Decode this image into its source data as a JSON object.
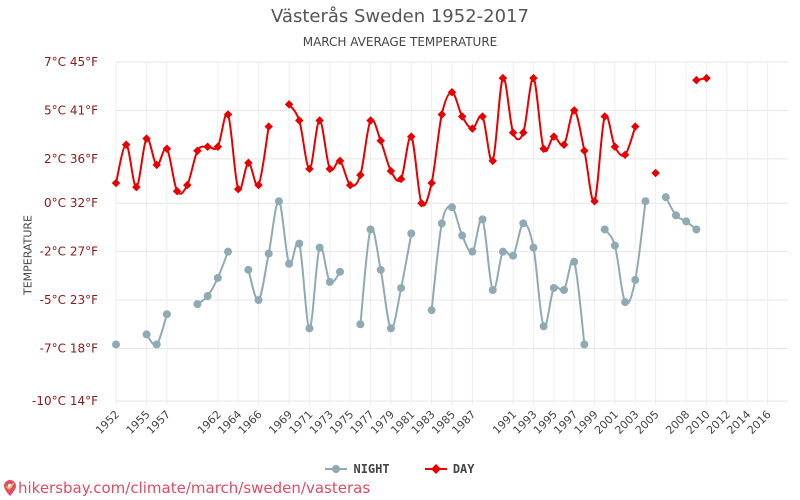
{
  "chart_data": {
    "type": "line",
    "title": "Västerås Sweden 1952-2017",
    "subtitle": "MARCH AVERAGE TEMPERATURE",
    "ylabel": "TEMPERATURE",
    "ylim": [
      -10,
      7
    ],
    "yticks": [
      {
        "v": 7,
        "label": "7°C 45°F"
      },
      {
        "v": 4.6,
        "label": "5°C 41°F"
      },
      {
        "v": 2.2,
        "label": "2°C 36°F"
      },
      {
        "v": 0,
        "label": "0°C 32°F"
      },
      {
        "v": -2.4,
        "label": "-2°C 27°F"
      },
      {
        "v": -4.8,
        "label": "-5°C 23°F"
      },
      {
        "v": -7.2,
        "label": "-7°C 18°F"
      },
      {
        "v": -9.8,
        "label": "-10°C 14°F"
      }
    ],
    "xlim": [
      1952,
      2018
    ],
    "xticks": [
      1952,
      1955,
      1957,
      1962,
      1964,
      1966,
      1969,
      1971,
      1973,
      1975,
      1977,
      1979,
      1981,
      1983,
      1985,
      1987,
      1991,
      1993,
      1995,
      1997,
      1999,
      2001,
      2003,
      2005,
      2008,
      2010,
      2012,
      2014,
      2016
    ],
    "grid": true,
    "legend_position": "bottom-center",
    "series": [
      {
        "name": "NIGHT",
        "color": "#90aab4",
        "points": [
          [
            1952,
            -7
          ],
          [
            1955,
            -6.5
          ],
          [
            1956,
            -7
          ],
          [
            1957,
            -5.5
          ],
          [
            1960,
            -5
          ],
          [
            1961,
            -4.6
          ],
          [
            1962,
            -3.7
          ],
          [
            1963,
            -2.4
          ],
          [
            1965,
            -3.3
          ],
          [
            1966,
            -4.8
          ],
          [
            1967,
            -2.5
          ],
          [
            1968,
            0.1
          ],
          [
            1969,
            -3
          ],
          [
            1970,
            -2
          ],
          [
            1971,
            -6.2
          ],
          [
            1972,
            -2.2
          ],
          [
            1973,
            -3.9
          ],
          [
            1974,
            -3.4
          ],
          [
            1976,
            -6
          ],
          [
            1977,
            -1.3
          ],
          [
            1978,
            -3.3
          ],
          [
            1979,
            -6.2
          ],
          [
            1980,
            -4.2
          ],
          [
            1981,
            -1.5
          ],
          [
            1983,
            -5.3
          ],
          [
            1984,
            -1
          ],
          [
            1985,
            -0.2
          ],
          [
            1986,
            -1.6
          ],
          [
            1987,
            -2.4
          ],
          [
            1988,
            -0.8
          ],
          [
            1989,
            -4.3
          ],
          [
            1990,
            -2.4
          ],
          [
            1991,
            -2.6
          ],
          [
            1992,
            -1
          ],
          [
            1993,
            -2.2
          ],
          [
            1994,
            -6.1
          ],
          [
            1995,
            -4.2
          ],
          [
            1996,
            -4.3
          ],
          [
            1997,
            -2.9
          ],
          [
            1998,
            -7
          ],
          [
            2000,
            -1.3
          ],
          [
            2001,
            -2.1
          ],
          [
            2002,
            -4.9
          ],
          [
            2003,
            -3.8
          ],
          [
            2004,
            0.1
          ],
          [
            2006,
            0.3
          ],
          [
            2007,
            -0.6
          ],
          [
            2008,
            -0.9
          ],
          [
            2009,
            -1.3
          ]
        ]
      },
      {
        "name": "DAY",
        "color": "#e80000",
        "points": [
          [
            1952,
            1
          ],
          [
            1953,
            2.9
          ],
          [
            1954,
            0.8
          ],
          [
            1955,
            3.2
          ],
          [
            1956,
            1.9
          ],
          [
            1957,
            2.7
          ],
          [
            1958,
            0.6
          ],
          [
            1959,
            0.9
          ],
          [
            1960,
            2.6
          ],
          [
            1961,
            2.8
          ],
          [
            1962,
            2.8
          ],
          [
            1963,
            4.4
          ],
          [
            1964,
            0.7
          ],
          [
            1965,
            2
          ],
          [
            1966,
            0.9
          ],
          [
            1967,
            3.8
          ],
          [
            1969,
            4.9
          ],
          [
            1970,
            4.1
          ],
          [
            1971,
            1.7
          ],
          [
            1972,
            4.1
          ],
          [
            1973,
            1.7
          ],
          [
            1974,
            2.1
          ],
          [
            1975,
            0.9
          ],
          [
            1976,
            1.4
          ],
          [
            1977,
            4.1
          ],
          [
            1978,
            3.1
          ],
          [
            1979,
            1.6
          ],
          [
            1980,
            1.2
          ],
          [
            1981,
            3.3
          ],
          [
            1982,
            0
          ],
          [
            1983,
            1
          ],
          [
            1984,
            4.4
          ],
          [
            1985,
            5.5
          ],
          [
            1986,
            4.3
          ],
          [
            1987,
            3.7
          ],
          [
            1988,
            4.3
          ],
          [
            1989,
            2.1
          ],
          [
            1990,
            6.2
          ],
          [
            1991,
            3.5
          ],
          [
            1992,
            3.5
          ],
          [
            1993,
            6.2
          ],
          [
            1994,
            2.7
          ],
          [
            1995,
            3.3
          ],
          [
            1996,
            2.9
          ],
          [
            1997,
            4.6
          ],
          [
            1998,
            2.6
          ],
          [
            1999,
            0.1
          ],
          [
            2000,
            4.3
          ],
          [
            2001,
            2.8
          ],
          [
            2002,
            2.4
          ],
          [
            2003,
            3.8
          ],
          [
            2005,
            1.5
          ],
          [
            2009,
            6.1
          ],
          [
            2010,
            6.2
          ]
        ]
      }
    ]
  },
  "legend": {
    "night_label": "NIGHT",
    "day_label": "DAY"
  },
  "source": {
    "text": "hikersbay.com/climate/march/sweden/vasteras",
    "color": "#e34a63"
  }
}
